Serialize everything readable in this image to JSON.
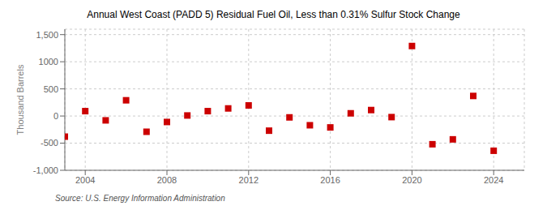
{
  "chart_data": {
    "type": "scatter",
    "title": "Annual West Coast (PADD 5) Residual Fuel Oil, Less than 0.31% Sulfur Stock Change",
    "ylabel": "Thousand Barrels",
    "annotations": [
      "Source: U.S. Energy Information Administration"
    ],
    "x": [
      2003,
      2004,
      2005,
      2006,
      2007,
      2008,
      2009,
      2010,
      2011,
      2012,
      2013,
      2014,
      2015,
      2016,
      2017,
      2018,
      2019,
      2020,
      2021,
      2022,
      2023,
      2024
    ],
    "values": [
      -380,
      90,
      -80,
      290,
      -290,
      -110,
      10,
      90,
      140,
      195,
      -270,
      -25,
      -170,
      -210,
      50,
      110,
      -20,
      1290,
      -520,
      -430,
      370,
      -640
    ],
    "color": "#cc0000",
    "marker": "square",
    "xlim": [
      2003,
      2025.5
    ],
    "xticks": [
      2004,
      2008,
      2012,
      2016,
      2020,
      2024
    ],
    "ylim": [
      -1000,
      1600
    ],
    "yticks": [
      {
        "value": -1000,
        "label": "-1,000"
      },
      -500,
      0,
      500,
      1000,
      {
        "value": 1500,
        "label": "1,500"
      }
    ],
    "grid": true
  }
}
